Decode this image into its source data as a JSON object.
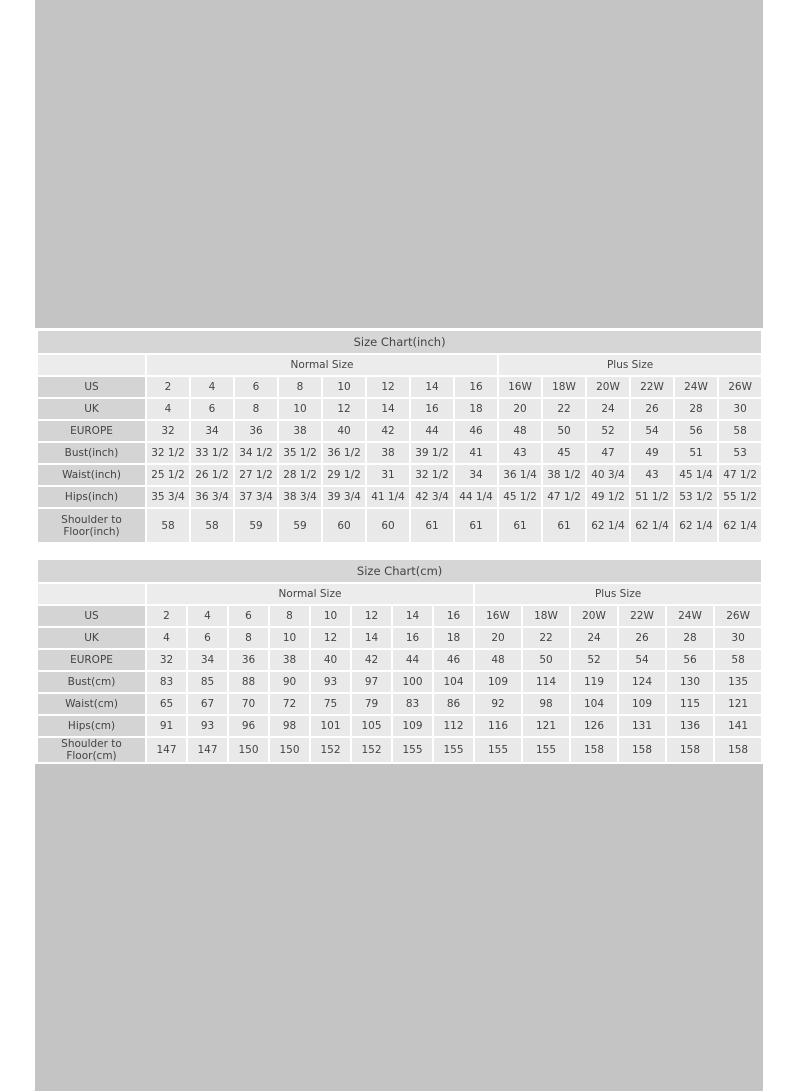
{
  "inch_chart": {
    "title": "Size Chart(inch)",
    "groups": [
      "Normal Size",
      "Plus Size"
    ],
    "rows": [
      {
        "label": "US",
        "values": [
          "2",
          "4",
          "6",
          "8",
          "10",
          "12",
          "14",
          "16",
          "16W",
          "18W",
          "20W",
          "22W",
          "24W",
          "26W"
        ]
      },
      {
        "label": "UK",
        "values": [
          "4",
          "6",
          "8",
          "10",
          "12",
          "14",
          "16",
          "18",
          "20",
          "22",
          "24",
          "26",
          "28",
          "30"
        ]
      },
      {
        "label": "EUROPE",
        "values": [
          "32",
          "34",
          "36",
          "38",
          "40",
          "42",
          "44",
          "46",
          "48",
          "50",
          "52",
          "54",
          "56",
          "58"
        ]
      },
      {
        "label": "Bust(inch)",
        "values": [
          "32 1/2",
          "33 1/2",
          "34 1/2",
          "35 1/2",
          "36 1/2",
          "38",
          "39 1/2",
          "41",
          "43",
          "45",
          "47",
          "49",
          "51",
          "53"
        ]
      },
      {
        "label": "Waist(inch)",
        "values": [
          "25 1/2",
          "26 1/2",
          "27 1/2",
          "28 1/2",
          "29 1/2",
          "31",
          "32 1/2",
          "34",
          "36 1/4",
          "38 1/2",
          "40 3/4",
          "43",
          "45 1/4",
          "47 1/2"
        ]
      },
      {
        "label": "Hips(inch)",
        "values": [
          "35 3/4",
          "36 3/4",
          "37 3/4",
          "38 3/4",
          "39 3/4",
          "41 1/4",
          "42 3/4",
          "44 1/4",
          "45 1/2",
          "47 1/2",
          "49 1/2",
          "51 1/2",
          "53 1/2",
          "55 1/2"
        ]
      },
      {
        "label": "Shoulder to Floor(inch)",
        "values": [
          "58",
          "58",
          "59",
          "59",
          "60",
          "60",
          "61",
          "61",
          "61",
          "61",
          "62 1/4",
          "62 1/4",
          "62 1/4",
          "62 1/4"
        ]
      }
    ]
  },
  "cm_chart": {
    "title": "Size Chart(cm)",
    "groups": [
      "Normal Size",
      "Plus Size"
    ],
    "rows": [
      {
        "label": "US",
        "values": [
          "2",
          "4",
          "6",
          "8",
          "10",
          "12",
          "14",
          "16",
          "16W",
          "18W",
          "20W",
          "22W",
          "24W",
          "26W"
        ]
      },
      {
        "label": "UK",
        "values": [
          "4",
          "6",
          "8",
          "10",
          "12",
          "14",
          "16",
          "18",
          "20",
          "22",
          "24",
          "26",
          "28",
          "30"
        ]
      },
      {
        "label": "EUROPE",
        "values": [
          "32",
          "34",
          "36",
          "38",
          "40",
          "42",
          "44",
          "46",
          "48",
          "50",
          "52",
          "54",
          "56",
          "58"
        ]
      },
      {
        "label": "Bust(cm)",
        "values": [
          "83",
          "85",
          "88",
          "90",
          "93",
          "97",
          "100",
          "104",
          "109",
          "114",
          "119",
          "124",
          "130",
          "135"
        ]
      },
      {
        "label": "Waist(cm)",
        "values": [
          "65",
          "67",
          "70",
          "72",
          "75",
          "79",
          "83",
          "86",
          "92",
          "98",
          "104",
          "109",
          "115",
          "121"
        ]
      },
      {
        "label": "Hips(cm)",
        "values": [
          "91",
          "93",
          "96",
          "98",
          "101",
          "105",
          "109",
          "112",
          "116",
          "121",
          "126",
          "131",
          "136",
          "141"
        ]
      },
      {
        "label": "Shoulder to Floor(cm)",
        "values": [
          "147",
          "147",
          "150",
          "150",
          "152",
          "152",
          "155",
          "155",
          "155",
          "155",
          "158",
          "158",
          "158",
          "158"
        ]
      }
    ]
  },
  "colors": {
    "background": "#c4c4c4",
    "label_cell": "#d4d4d4",
    "data_cell": "#e9e9e9",
    "text": "#444444"
  }
}
